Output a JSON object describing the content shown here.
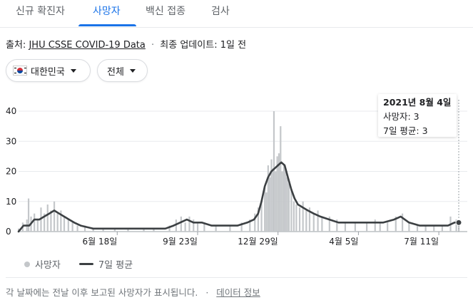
{
  "tabs": [
    {
      "label": "신규 확진자"
    },
    {
      "label": "사망자"
    },
    {
      "label": "백신 접종"
    },
    {
      "label": "검사"
    }
  ],
  "active_tab": "사망자",
  "source": {
    "prefix": "출처:",
    "link": "JHU CSSE COVID-19 Data",
    "separator": "·",
    "update": "최종 업데이트: 1일 전"
  },
  "filters": {
    "region": "대한민국",
    "range": "전체"
  },
  "tooltip": {
    "date": "2021년 8월 4일",
    "deaths": "사망자: 3",
    "avg": "7일 평균: 3"
  },
  "legend": {
    "daily": "사망자",
    "average": "7일 평균"
  },
  "footer": {
    "note": "각 날짜에는 전날 이후 보고된 사망자가 표시됩니다.",
    "separator": "·",
    "link": "데이터 정보"
  },
  "colors": {
    "accent": "#1a73e8",
    "bars": "#c4c7ca",
    "line": "#3c4043"
  },
  "chart_data": {
    "type": "bar",
    "title": "",
    "xlabel": "",
    "ylabel": "",
    "ylim": [
      0,
      40
    ],
    "yticks": [
      0,
      10,
      20,
      30,
      40
    ],
    "x_range": [
      "2020-02-20",
      "2021-08-04"
    ],
    "xticks": [
      {
        "date": "2020-06-18",
        "label": "6월 18일"
      },
      {
        "date": "2020-09-23",
        "label": "9월 23일"
      },
      {
        "date": "2020-12-29",
        "label": "12월 29일"
      },
      {
        "date": "2021-04-05",
        "label": "4월 5일"
      },
      {
        "date": "2021-07-11",
        "label": "7월 11일"
      }
    ],
    "grid": true,
    "legend_position": "bottom",
    "series": [
      {
        "name": "사망자",
        "type": "bar",
        "points": [
          [
            "2020-02-20",
            1
          ],
          [
            "2020-02-25",
            3
          ],
          [
            "2020-03-01",
            4
          ],
          [
            "2020-03-03",
            11
          ],
          [
            "2020-03-06",
            5
          ],
          [
            "2020-03-10",
            6
          ],
          [
            "2020-03-14",
            4
          ],
          [
            "2020-03-18",
            8
          ],
          [
            "2020-03-22",
            6
          ],
          [
            "2020-03-26",
            9
          ],
          [
            "2020-03-30",
            7
          ],
          [
            "2020-04-03",
            10
          ],
          [
            "2020-04-07",
            6
          ],
          [
            "2020-04-11",
            7
          ],
          [
            "2020-04-15",
            5
          ],
          [
            "2020-04-20",
            4
          ],
          [
            "2020-04-25",
            3
          ],
          [
            "2020-05-01",
            2
          ],
          [
            "2020-05-10",
            2
          ],
          [
            "2020-05-20",
            1
          ],
          [
            "2020-06-01",
            1
          ],
          [
            "2020-06-15",
            1
          ],
          [
            "2020-07-01",
            1
          ],
          [
            "2020-07-20",
            1
          ],
          [
            "2020-08-01",
            1
          ],
          [
            "2020-08-20",
            2
          ],
          [
            "2020-08-28",
            4
          ],
          [
            "2020-09-03",
            5
          ],
          [
            "2020-09-08",
            3
          ],
          [
            "2020-09-13",
            5
          ],
          [
            "2020-09-18",
            4
          ],
          [
            "2020-09-23",
            3
          ],
          [
            "2020-10-01",
            3
          ],
          [
            "2020-10-15",
            2
          ],
          [
            "2020-11-01",
            2
          ],
          [
            "2020-11-15",
            3
          ],
          [
            "2020-11-25",
            4
          ],
          [
            "2020-12-01",
            6
          ],
          [
            "2020-12-05",
            8
          ],
          [
            "2020-12-09",
            10
          ],
          [
            "2020-12-13",
            15
          ],
          [
            "2020-12-15",
            13
          ],
          [
            "2020-12-17",
            22
          ],
          [
            "2020-12-19",
            18
          ],
          [
            "2020-12-21",
            24
          ],
          [
            "2020-12-23",
            21
          ],
          [
            "2020-12-24",
            40
          ],
          [
            "2020-12-26",
            20
          ],
          [
            "2020-12-28",
            25
          ],
          [
            "2020-12-30",
            26
          ],
          [
            "2021-01-01",
            35
          ],
          [
            "2021-01-03",
            20
          ],
          [
            "2021-01-05",
            22
          ],
          [
            "2021-01-07",
            21
          ],
          [
            "2021-01-09",
            18
          ],
          [
            "2021-01-11",
            16
          ],
          [
            "2021-01-14",
            14
          ],
          [
            "2021-01-17",
            10
          ],
          [
            "2021-01-20",
            9
          ],
          [
            "2021-01-24",
            8
          ],
          [
            "2021-01-28",
            10
          ],
          [
            "2021-02-01",
            7
          ],
          [
            "2021-02-05",
            8
          ],
          [
            "2021-02-10",
            6
          ],
          [
            "2021-02-15",
            7
          ],
          [
            "2021-02-20",
            5
          ],
          [
            "2021-03-01",
            5
          ],
          [
            "2021-03-10",
            4
          ],
          [
            "2021-03-20",
            3
          ],
          [
            "2021-04-01",
            3
          ],
          [
            "2021-04-15",
            3
          ],
          [
            "2021-04-25",
            4
          ],
          [
            "2021-05-01",
            3
          ],
          [
            "2021-05-10",
            3
          ],
          [
            "2021-05-20",
            5
          ],
          [
            "2021-05-28",
            6
          ],
          [
            "2021-06-05",
            3
          ],
          [
            "2021-06-15",
            2
          ],
          [
            "2021-06-25",
            2
          ],
          [
            "2021-07-05",
            2
          ],
          [
            "2021-07-15",
            2
          ],
          [
            "2021-07-25",
            5
          ],
          [
            "2021-08-01",
            4
          ],
          [
            "2021-08-04",
            3
          ]
        ]
      },
      {
        "name": "7일 평균",
        "type": "line",
        "points": [
          [
            "2020-02-20",
            0
          ],
          [
            "2020-02-26",
            2
          ],
          [
            "2020-03-04",
            2
          ],
          [
            "2020-03-10",
            4
          ],
          [
            "2020-03-16",
            4
          ],
          [
            "2020-03-22",
            5
          ],
          [
            "2020-03-28",
            6
          ],
          [
            "2020-04-03",
            7
          ],
          [
            "2020-04-09",
            6
          ],
          [
            "2020-04-15",
            5
          ],
          [
            "2020-04-21",
            4
          ],
          [
            "2020-04-27",
            3
          ],
          [
            "2020-05-05",
            2
          ],
          [
            "2020-05-20",
            1
          ],
          [
            "2020-06-10",
            1
          ],
          [
            "2020-07-05",
            1
          ],
          [
            "2020-07-25",
            1
          ],
          [
            "2020-08-15",
            1
          ],
          [
            "2020-08-25",
            2
          ],
          [
            "2020-09-02",
            3
          ],
          [
            "2020-09-10",
            4
          ],
          [
            "2020-09-18",
            3
          ],
          [
            "2020-09-28",
            3
          ],
          [
            "2020-10-10",
            2
          ],
          [
            "2020-10-25",
            2
          ],
          [
            "2020-11-10",
            2
          ],
          [
            "2020-11-22",
            3
          ],
          [
            "2020-11-30",
            4
          ],
          [
            "2020-12-05",
            6
          ],
          [
            "2020-12-09",
            10
          ],
          [
            "2020-12-13",
            15
          ],
          [
            "2020-12-17",
            18
          ],
          [
            "2020-12-21",
            20
          ],
          [
            "2020-12-25",
            21
          ],
          [
            "2020-12-29",
            22
          ],
          [
            "2021-01-02",
            23
          ],
          [
            "2021-01-06",
            22
          ],
          [
            "2021-01-10",
            18
          ],
          [
            "2021-01-14",
            14
          ],
          [
            "2021-01-18",
            11
          ],
          [
            "2021-01-22",
            9
          ],
          [
            "2021-01-28",
            8
          ],
          [
            "2021-02-03",
            7
          ],
          [
            "2021-02-10",
            6
          ],
          [
            "2021-02-18",
            5
          ],
          [
            "2021-03-01",
            4
          ],
          [
            "2021-03-12",
            3
          ],
          [
            "2021-03-25",
            3
          ],
          [
            "2021-04-10",
            3
          ],
          [
            "2021-04-22",
            3
          ],
          [
            "2021-05-05",
            3
          ],
          [
            "2021-05-18",
            4
          ],
          [
            "2021-05-26",
            5
          ],
          [
            "2021-06-05",
            3
          ],
          [
            "2021-06-18",
            2
          ],
          [
            "2021-07-05",
            2
          ],
          [
            "2021-07-22",
            2
          ],
          [
            "2021-07-30",
            3
          ],
          [
            "2021-08-04",
            3
          ]
        ]
      }
    ]
  }
}
